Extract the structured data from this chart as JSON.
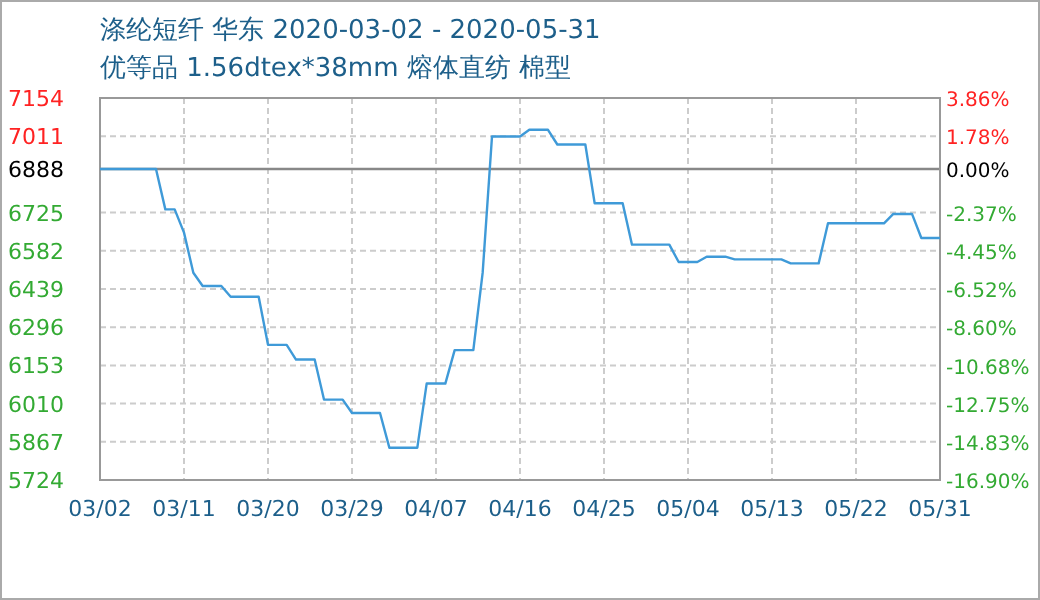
{
  "chart_data": {
    "type": "line",
    "title": "涤纶短纤 华东 2020-03-02 - 2020-05-31",
    "subtitle": "优等品 1.56dtex*38mm 熔体直纺 棉型",
    "series": [
      {
        "color": "#3f9ad8",
        "x": [
          "2020-03-02",
          "2020-03-08",
          "2020-03-09",
          "2020-03-10",
          "2020-03-11",
          "2020-03-12",
          "2020-03-13",
          "2020-03-15",
          "2020-03-16",
          "2020-03-19",
          "2020-03-20",
          "2020-03-22",
          "2020-03-23",
          "2020-03-25",
          "2020-03-26",
          "2020-03-28",
          "2020-03-29",
          "2020-04-01",
          "2020-04-02",
          "2020-04-05",
          "2020-04-06",
          "2020-04-08",
          "2020-04-09",
          "2020-04-11",
          "2020-04-12",
          "2020-04-13",
          "2020-04-16",
          "2020-04-17",
          "2020-04-19",
          "2020-04-20",
          "2020-04-23",
          "2020-04-24",
          "2020-04-27",
          "2020-04-28",
          "2020-05-02",
          "2020-05-03",
          "2020-05-05",
          "2020-05-06",
          "2020-05-08",
          "2020-05-09",
          "2020-05-14",
          "2020-05-15",
          "2020-05-18",
          "2020-05-19",
          "2020-05-25",
          "2020-05-26",
          "2020-05-28",
          "2020-05-29",
          "2020-05-31"
        ],
        "values": [
          6888,
          6888,
          6737,
          6737,
          6650,
          6500,
          6450,
          6450,
          6410,
          6410,
          6230,
          6230,
          6175,
          6175,
          6025,
          6025,
          5975,
          5975,
          5845,
          5845,
          6085,
          6085,
          6210,
          6210,
          6500,
          7010,
          7010,
          7035,
          7035,
          6980,
          6980,
          6760,
          6760,
          6605,
          6605,
          6540,
          6540,
          6560,
          6560,
          6550,
          6550,
          6535,
          6535,
          6685,
          6685,
          6720,
          6720,
          6630,
          6630
        ]
      }
    ],
    "xlim": [
      "2020-03-02",
      "2020-05-31"
    ],
    "xticks": [
      {
        "value": "2020-03-02",
        "label": "03/02"
      },
      {
        "value": "2020-03-11",
        "label": "03/11"
      },
      {
        "value": "2020-03-20",
        "label": "03/20"
      },
      {
        "value": "2020-03-29",
        "label": "03/29"
      },
      {
        "value": "2020-04-07",
        "label": "04/07"
      },
      {
        "value": "2020-04-16",
        "label": "04/16"
      },
      {
        "value": "2020-04-25",
        "label": "04/25"
      },
      {
        "value": "2020-05-04",
        "label": "05/04"
      },
      {
        "value": "2020-05-13",
        "label": "05/13"
      },
      {
        "value": "2020-05-22",
        "label": "05/22"
      },
      {
        "value": "2020-05-31",
        "label": "05/31"
      }
    ],
    "ylim": [
      5724,
      7154
    ],
    "yticks": [
      7154,
      7011,
      6888,
      6725,
      6582,
      6439,
      6296,
      6153,
      6010,
      5867,
      5724
    ],
    "y2lim": [
      -16.9,
      3.86
    ],
    "y2ticks": [
      {
        "value": 3.86,
        "label": "3.86%"
      },
      {
        "value": 1.78,
        "label": "1.78%"
      },
      {
        "value": 0,
        "label": "0.00%"
      },
      {
        "value": -2.37,
        "label": "-2.37%"
      },
      {
        "value": -4.45,
        "label": "-4.45%"
      },
      {
        "value": -6.52,
        "label": "-6.52%"
      },
      {
        "value": -8.6,
        "label": "-8.60%"
      },
      {
        "value": -10.68,
        "label": "-10.68%"
      },
      {
        "value": -12.75,
        "label": "-12.75%"
      },
      {
        "value": -14.83,
        "label": "-14.83%"
      },
      {
        "value": -16.9,
        "label": "-16.90%"
      }
    ],
    "ref_lines": [
      {
        "axis": "y",
        "value": 6888,
        "color": "#888888"
      }
    ],
    "grid": true,
    "marker": "none",
    "line_style": "solid"
  }
}
